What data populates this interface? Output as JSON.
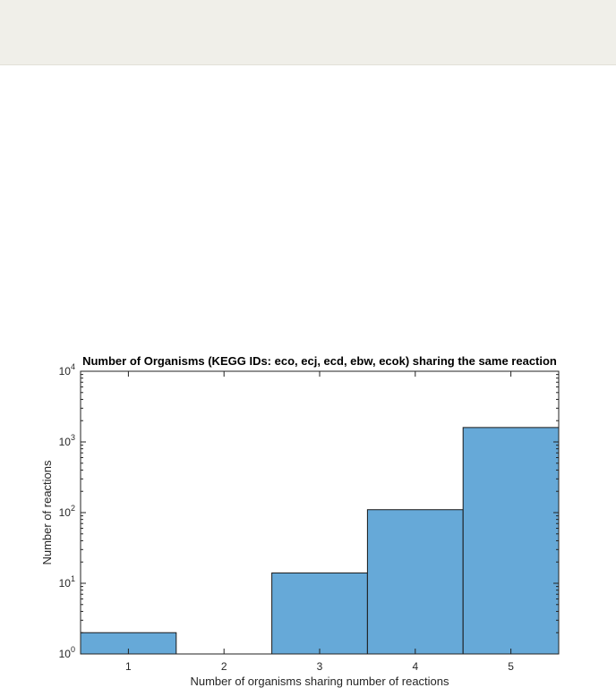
{
  "chart_data": {
    "type": "bar",
    "title": "Number of Organisms (KEGG IDs: eco, ecj, ecd, ebw, ecok) sharing the same reaction",
    "xlabel": "Number of organisms sharing number of reactions",
    "ylabel": "Number of reactions",
    "categories": [
      "1",
      "2",
      "3",
      "4",
      "5"
    ],
    "values": [
      2,
      0,
      14,
      110,
      1600
    ],
    "yscale": "log",
    "ylim": [
      1,
      10000
    ],
    "y_ticks": [
      {
        "base": "10",
        "exp": "0"
      },
      {
        "base": "10",
        "exp": "1"
      },
      {
        "base": "10",
        "exp": "2"
      },
      {
        "base": "10",
        "exp": "3"
      },
      {
        "base": "10",
        "exp": "4"
      }
    ],
    "bar_color": "#66a9d8",
    "grid": false,
    "legend": "none"
  }
}
